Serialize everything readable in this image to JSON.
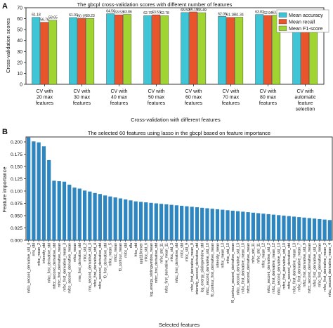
{
  "chart_data": [
    {
      "type": "bar",
      "panel_label": "A",
      "title": "The gbcpl cross-validation scores with different number of features",
      "xlabel": "Cross-validation with different features",
      "ylabel": "Cross-validation scores",
      "ylim": [
        0,
        70
      ],
      "yticks": [
        0,
        10,
        20,
        30,
        40,
        50,
        60,
        70
      ],
      "grid": false,
      "legend_position": "top-right",
      "categories": [
        [
          "CV with",
          "20 max",
          "features"
        ],
        [
          "CV with",
          "30 max",
          "features"
        ],
        [
          "CV with",
          "40 max",
          "features"
        ],
        [
          "CV with",
          "50 max",
          "features"
        ],
        [
          "CV with",
          "60 max",
          "features"
        ],
        [
          "CV with",
          "70 max",
          "features"
        ],
        [
          "CV with",
          "80 max",
          "features"
        ],
        [
          "CV with",
          "automatic",
          "feature",
          "selection"
        ]
      ],
      "series": [
        {
          "name": "Mean accuracy",
          "color": "#3ec6d6",
          "values": [
            61.18,
            61.03,
            64.56,
            62.79,
            65.59,
            62.06,
            63.82,
            64.12
          ],
          "labels": [
            "61.18",
            "61.03",
            "64.56",
            "62.79",
            "65.59",
            "62.06",
            "63.82",
            "64.12"
          ]
        },
        {
          "name": "Mean recall",
          "color": "#e8542c",
          "values": [
            56.76,
            60.15,
            63.53,
            63.53,
            66.18,
            61.18,
            62.94,
            62.65
          ],
          "labels": [
            "56.76",
            "60.15",
            "63.53",
            "63.53",
            "66.18",
            "61.18",
            "62.94",
            "62.65"
          ]
        },
        {
          "name": "Mean F1-score",
          "color": "#9fd431",
          "values": [
            58.65,
            60.23,
            63.86,
            62.78,
            65.49,
            61.34,
            63.25,
            63.03
          ],
          "labels": [
            "58.65",
            "60.23",
            "63.86",
            "62.78",
            "65.49",
            "61.34",
            "63.25",
            ""
          ]
        }
      ]
    },
    {
      "type": "bar",
      "panel_label": "B",
      "title": "The selected 60 features using lasso in the gbcpl based on feature importance",
      "xlabel": "Selected features",
      "ylabel": "Feature importance",
      "ylim": [
        0,
        0.21
      ],
      "yticks": [
        "0.000",
        "0.025",
        "0.050",
        "0.075",
        "0.100",
        "0.125",
        "0.150",
        "0.175",
        "0.200"
      ],
      "grid": false,
      "color": "#2e86c1",
      "values": [
        0.209,
        0.201,
        0.199,
        0.191,
        0.163,
        0.121,
        0.12,
        0.119,
        0.113,
        0.107,
        0.105,
        0.101,
        0.099,
        0.096,
        0.094,
        0.091,
        0.089,
        0.087,
        0.085,
        0.083,
        0.081,
        0.079,
        0.078,
        0.077,
        0.076,
        0.075,
        0.074,
        0.073,
        0.072,
        0.071,
        0.07,
        0.069,
        0.068,
        0.067,
        0.066,
        0.065,
        0.064,
        0.063,
        0.062,
        0.061,
        0.06,
        0.059,
        0.058,
        0.057,
        0.056,
        0.055,
        0.054,
        0.053,
        0.052,
        0.051,
        0.05,
        0.049,
        0.048,
        0.047,
        0.046,
        0.045,
        0.044,
        0.043,
        0.042,
        0.041
      ],
      "tick_labels": [
        "mfcc_second_derivative_std_4",
        "rms_std",
        "mfcc_mean_2",
        "intensity_std",
        "mfcc_first_derivative_std",
        "mfcc_second_derivative_std",
        "mfcc_first_derivative_mean",
        "mfcc_first_derivative_mean_3",
        "mfcc_second_derivative_mean",
        "mfcc_mean",
        "rms_first_derivative_std",
        "mfcc_std_2",
        "rms_second_derivative_std_3",
        "mfcc_first_derivative_std_4",
        "mfcc_second_derivative_std",
        "f0_first_derivative_std",
        "mfcc_mean_5",
        "mfcc_mean",
        "f0_contour_mean",
        "mfcc_std",
        "dfa",
        "hfcc_std",
        "app118mmer",
        "mfcc_std_6",
        "log_energy_slidingwindow_mean",
        "mfcc_first_derivative_std",
        "mfcc_std_11",
        "mfcc_first_derivative_mean_11",
        "mfcc_std_3",
        "mfcc_first_derivative_std",
        "mfcc_std",
        "mfcc_std_9",
        "mfcc_first_derivative_mean_9",
        "intensity_second_derivative_std",
        "log_energy_slidingwindow_std",
        "mfcc_second_derivative_std_10",
        "f0_contour_first_derivative_mean",
        "intensity_mean",
        "mfcc_mean_13",
        "mfcc_std_10",
        "f0_contour_second_derivative_mean",
        "mfcc_second_derivative_std_13",
        "mfcc_first_derivative_mean_10",
        "mfcc_second_derivative_mean",
        "mfcc_std_11",
        "mfcc_std_11",
        "mfcc_mean_12",
        "mfcc_second_derivative_std_2",
        "mfcc_first_derivative_mean_12",
        "mfcc_second_derivative_std_13",
        "mfcc_first_derivative_std_10",
        "mfcc_second_derivative_std",
        "mfcc_first_derivative_mean_13",
        "mfcc_first_derivative_mean_7",
        "mfcc_first_derivative_std_9",
        "mfcc_second_derivative_mean",
        "mfcc_first_derivative_std_1",
        "mfcc_first_derivative_mean",
        "mfcc_first_derivative_mean_2",
        "mfcc_second_derivative_mean_4"
      ]
    }
  ]
}
